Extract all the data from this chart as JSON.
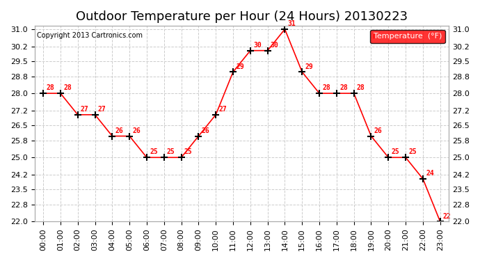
{
  "title": "Outdoor Temperature per Hour (24 Hours) 20130223",
  "copyright_text": "Copyright 2013 Cartronics.com",
  "legend_label": "Temperature  (°F)",
  "hours": [
    "00:00",
    "01:00",
    "02:00",
    "03:00",
    "04:00",
    "05:00",
    "06:00",
    "07:00",
    "08:00",
    "09:00",
    "10:00",
    "11:00",
    "12:00",
    "13:00",
    "14:00",
    "15:00",
    "16:00",
    "17:00",
    "18:00",
    "19:00",
    "20:00",
    "21:00",
    "22:00",
    "23:00"
  ],
  "temp_values": [
    28,
    28,
    27,
    27,
    26,
    26,
    25,
    25,
    25,
    26,
    27,
    29,
    30,
    30,
    31,
    29,
    28,
    28,
    28,
    26,
    25,
    25,
    24,
    22
  ],
  "ylim_min": 22.0,
  "ylim_max": 31.0,
  "yticks": [
    22.0,
    22.8,
    23.5,
    24.2,
    25.0,
    25.8,
    26.5,
    27.2,
    28.0,
    28.8,
    29.5,
    30.2,
    31.0
  ],
  "line_color": "red",
  "marker_color": "black",
  "grid_color": "#cccccc",
  "bg_color": "white",
  "title_fontsize": 13,
  "tick_fontsize": 8,
  "annot_fontsize": 7,
  "copyright_fontsize": 7,
  "legend_fontsize": 8
}
